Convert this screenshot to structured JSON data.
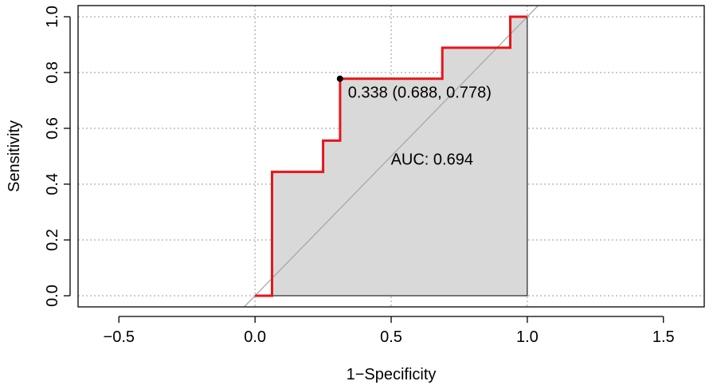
{
  "chart_data": {
    "type": "line",
    "xlabel": "1−Specificity",
    "ylabel": "Sensitivity",
    "xlim": [
      -0.65,
      1.65
    ],
    "ylim": [
      -0.04,
      1.04
    ],
    "x_ticks": [
      -0.5,
      0.0,
      0.5,
      1.0,
      1.5
    ],
    "x_tick_labels": [
      "−0.5",
      "0.0",
      "0.5",
      "1.0",
      "1.5"
    ],
    "y_ticks": [
      0.0,
      0.2,
      0.4,
      0.6,
      0.8,
      1.0
    ],
    "y_tick_labels": [
      "0.0",
      "0.2",
      "0.4",
      "0.6",
      "0.8",
      "1.0"
    ],
    "grid": true,
    "grid_x": [
      0.0,
      0.5,
      1.0
    ],
    "grid_y": [
      0.0,
      0.2,
      0.4,
      0.6,
      0.8,
      1.0
    ],
    "series": [
      {
        "color": "#e8141b",
        "points": [
          [
            0,
            0
          ],
          [
            0.0625,
            0
          ],
          [
            0.0625,
            0.444
          ],
          [
            0.25,
            0.444
          ],
          [
            0.25,
            0.556
          ],
          [
            0.3125,
            0.556
          ],
          [
            0.3125,
            0.778
          ],
          [
            0.688,
            0.778
          ],
          [
            0.688,
            0.889
          ],
          [
            0.9375,
            0.889
          ],
          [
            0.9375,
            1.0
          ],
          [
            1.0,
            1.0
          ]
        ]
      }
    ],
    "auc_fill_color": "#d9d9d9",
    "diagonal": {
      "from": [
        -0.04,
        -0.04
      ],
      "to": [
        1.04,
        1.04
      ],
      "color": "#a8a8a8"
    },
    "threshold_point": {
      "x": 0.312,
      "y": 0.778,
      "label": "0.338 (0.688, 0.778)"
    },
    "annotations": [
      {
        "text": "AUC: 0.694",
        "x": 0.65,
        "y": 0.47,
        "color": "#e8141b"
      }
    ]
  }
}
